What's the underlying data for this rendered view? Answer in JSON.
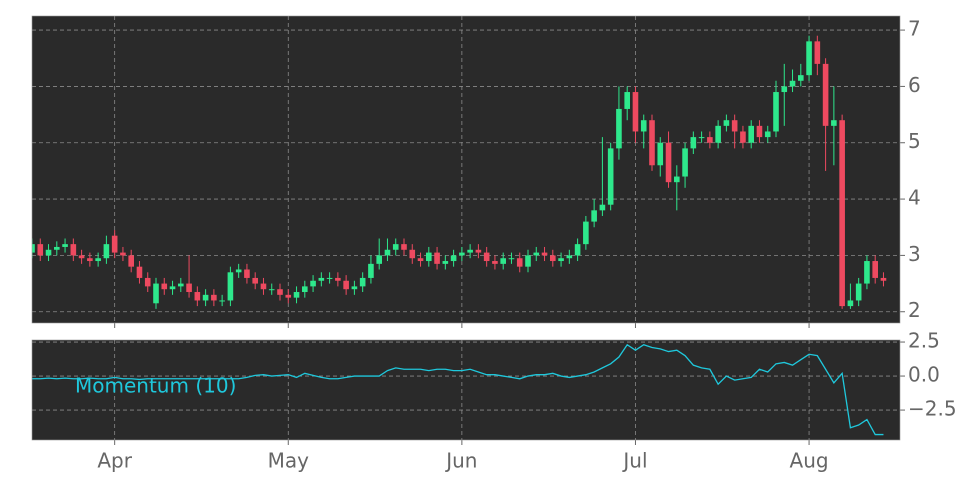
{
  "chart_data": [
    {
      "type": "candlestick",
      "xlim": [
        0,
        105
      ],
      "xticks": [
        {
          "value": 10,
          "label": "Apr"
        },
        {
          "value": 31,
          "label": "May"
        },
        {
          "value": 52,
          "label": "Jun"
        },
        {
          "value": 73,
          "label": "Jul"
        },
        {
          "value": 94,
          "label": "Aug"
        }
      ],
      "ylim": [
        1.8,
        7.25
      ],
      "yticks": [
        2,
        3,
        4,
        5,
        6,
        7
      ],
      "grid": true,
      "up_color": "#2ee88c",
      "down_color": "#ee4a60",
      "open": [
        3.05,
        3.2,
        3.0,
        3.1,
        3.15,
        3.2,
        3.0,
        2.95,
        2.9,
        2.95,
        3.35,
        3.05,
        3.0,
        2.8,
        2.6,
        2.15,
        2.5,
        2.4,
        2.45,
        2.5,
        2.35,
        2.2,
        2.3,
        2.2,
        2.2,
        2.7,
        2.75,
        2.6,
        2.5,
        2.4,
        2.4,
        2.3,
        2.25,
        2.35,
        2.45,
        2.55,
        2.6,
        2.6,
        2.55,
        2.4,
        2.45,
        2.6,
        2.85,
        3.0,
        3.1,
        3.2,
        3.1,
        2.95,
        2.9,
        3.05,
        2.85,
        2.9,
        3.0,
        3.05,
        3.1,
        3.05,
        2.9,
        2.85,
        2.95,
        2.95,
        2.8,
        3.0,
        3.05,
        3.0,
        2.9,
        2.95,
        3.0,
        3.2,
        3.6,
        3.8,
        3.9,
        4.9,
        5.6,
        5.9,
        5.2,
        5.4,
        4.6,
        5.0,
        4.3,
        4.4,
        4.9,
        5.1,
        5.1,
        5.0,
        5.3,
        5.4,
        5.2,
        5.0,
        5.3,
        5.1,
        5.2,
        5.9,
        6.0,
        6.1,
        6.2,
        6.8,
        6.4,
        5.3,
        5.4,
        2.1,
        2.2,
        2.5,
        2.9,
        2.6
      ],
      "high": [
        3.3,
        3.3,
        3.2,
        3.25,
        3.3,
        3.3,
        3.1,
        3.05,
        3.05,
        3.35,
        3.45,
        3.15,
        3.1,
        2.9,
        2.7,
        2.6,
        2.6,
        2.55,
        2.6,
        3.0,
        2.45,
        2.4,
        2.4,
        2.3,
        2.8,
        2.85,
        2.85,
        2.7,
        2.6,
        2.5,
        2.5,
        2.4,
        2.45,
        2.55,
        2.65,
        2.7,
        2.7,
        2.7,
        2.65,
        2.55,
        2.7,
        3.0,
        3.3,
        3.3,
        3.3,
        3.3,
        3.2,
        3.05,
        3.15,
        3.15,
        3.0,
        3.1,
        3.15,
        3.2,
        3.2,
        3.15,
        3.0,
        3.05,
        3.05,
        3.05,
        3.1,
        3.15,
        3.15,
        3.1,
        3.05,
        3.1,
        3.3,
        3.7,
        4.0,
        5.1,
        5.0,
        6.0,
        6.0,
        6.0,
        5.5,
        5.5,
        5.1,
        5.2,
        4.6,
        5.0,
        5.2,
        5.2,
        5.2,
        5.4,
        5.5,
        5.5,
        5.3,
        5.4,
        5.4,
        5.3,
        6.1,
        6.4,
        6.3,
        6.4,
        6.9,
        6.9,
        6.5,
        6.0,
        5.5,
        2.5,
        2.6,
        3.0,
        3.0,
        2.7
      ],
      "low": [
        2.95,
        2.9,
        2.9,
        3.0,
        3.05,
        2.9,
        2.85,
        2.8,
        2.8,
        2.85,
        2.95,
        2.9,
        2.7,
        2.5,
        2.35,
        2.05,
        2.3,
        2.3,
        2.35,
        2.25,
        2.1,
        2.1,
        2.1,
        2.1,
        2.1,
        2.6,
        2.5,
        2.4,
        2.3,
        2.3,
        2.2,
        2.15,
        2.15,
        2.25,
        2.35,
        2.45,
        2.5,
        2.45,
        2.3,
        2.3,
        2.35,
        2.5,
        2.75,
        2.9,
        3.0,
        3.0,
        2.85,
        2.8,
        2.8,
        2.75,
        2.75,
        2.8,
        2.9,
        2.95,
        2.95,
        2.8,
        2.75,
        2.75,
        2.85,
        2.7,
        2.7,
        2.9,
        2.9,
        2.8,
        2.8,
        2.85,
        2.9,
        3.1,
        3.5,
        3.7,
        3.8,
        4.7,
        5.4,
        5.0,
        4.9,
        4.5,
        4.4,
        4.2,
        3.8,
        4.2,
        4.8,
        5.0,
        4.9,
        4.9,
        5.2,
        4.9,
        4.9,
        4.9,
        5.0,
        5.0,
        5.1,
        5.3,
        5.9,
        6.0,
        6.1,
        6.2,
        4.5,
        4.6,
        2.05,
        2.05,
        2.1,
        2.4,
        2.5,
        2.45
      ],
      "close": [
        3.2,
        3.0,
        3.1,
        3.15,
        3.2,
        3.0,
        2.95,
        2.9,
        2.95,
        3.2,
        3.05,
        3.0,
        2.8,
        2.6,
        2.45,
        2.5,
        2.4,
        2.45,
        2.5,
        2.35,
        2.2,
        2.3,
        2.2,
        2.2,
        2.7,
        2.75,
        2.6,
        2.5,
        2.4,
        2.4,
        2.3,
        2.25,
        2.35,
        2.45,
        2.55,
        2.6,
        2.6,
        2.55,
        2.4,
        2.45,
        2.6,
        2.85,
        3.0,
        3.1,
        3.2,
        3.1,
        2.95,
        2.9,
        3.05,
        2.85,
        2.9,
        3.0,
        3.05,
        3.1,
        3.05,
        2.9,
        2.85,
        2.95,
        2.95,
        2.8,
        3.0,
        3.05,
        3.0,
        2.9,
        2.95,
        3.0,
        3.2,
        3.6,
        3.8,
        3.9,
        4.9,
        5.6,
        5.9,
        5.2,
        5.4,
        4.6,
        5.0,
        4.3,
        4.4,
        4.9,
        5.1,
        5.1,
        5.0,
        5.3,
        5.4,
        5.2,
        5.0,
        5.3,
        5.1,
        5.2,
        5.9,
        6.0,
        6.1,
        6.2,
        6.8,
        6.4,
        5.3,
        5.4,
        2.1,
        2.2,
        2.5,
        2.9,
        2.6,
        2.55
      ]
    },
    {
      "type": "line",
      "xlim": [
        0,
        105
      ],
      "ylim": [
        -4.7,
        2.65
      ],
      "yticks": [
        2.5,
        {
          "value": 0,
          "label": "0.0"
        },
        {
          "value": -2.5,
          "label": "−2.5"
        }
      ],
      "grid": true,
      "series": [
        {
          "name": "Momentum (10)",
          "color": "#1fc8dc",
          "values": [
            -0.2,
            -0.2,
            -0.15,
            -0.2,
            -0.15,
            -0.2,
            -0.2,
            -0.15,
            -0.2,
            -0.2,
            -0.1,
            -0.2,
            -0.2,
            -0.25,
            -0.2,
            -0.2,
            -0.2,
            -0.2,
            -0.2,
            -0.2,
            -0.2,
            -0.2,
            -0.2,
            -0.2,
            -0.2,
            -0.2,
            -0.1,
            0.05,
            0.1,
            0.0,
            0.05,
            0.1,
            -0.1,
            0.2,
            0.05,
            -0.1,
            -0.2,
            -0.2,
            -0.1,
            0.0,
            0.0,
            0.0,
            0.0,
            0.4,
            0.6,
            0.5,
            0.5,
            0.5,
            0.4,
            0.5,
            0.5,
            0.4,
            0.4,
            0.5,
            0.3,
            0.1,
            0.1,
            0.0,
            -0.1,
            -0.2,
            0.0,
            0.1,
            0.1,
            0.2,
            0.0,
            -0.1,
            0.0,
            0.1,
            0.3,
            0.6,
            0.9,
            1.4,
            2.3,
            1.9,
            2.3,
            2.1,
            2.0,
            1.8,
            1.9,
            1.5,
            0.8,
            0.6,
            0.5,
            -0.6,
            0.0,
            -0.3,
            -0.2,
            -0.1,
            0.5,
            0.3,
            0.9,
            1.0,
            0.8,
            1.2,
            1.6,
            1.5,
            0.5,
            -0.5,
            0.2,
            -3.8,
            -3.6,
            -3.2,
            -4.3,
            -4.3
          ]
        }
      ]
    }
  ]
}
